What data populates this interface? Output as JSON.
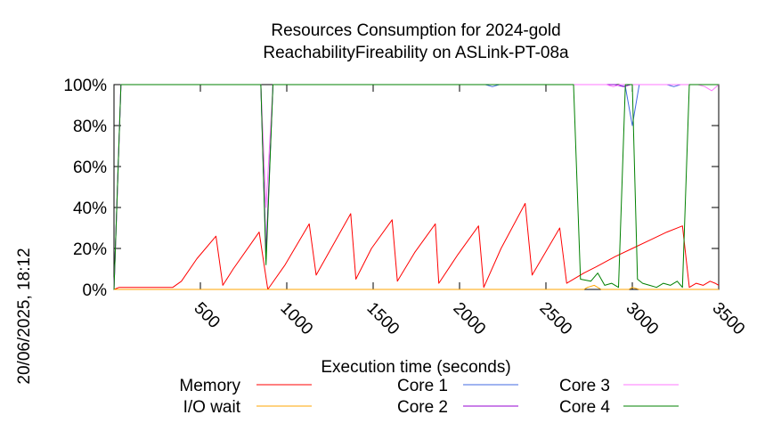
{
  "chart_data": {
    "type": "line",
    "title": "Resources Consumption for 2024-gold",
    "subtitle": "ReachabilityFireability on ASLink-PT-08a",
    "xlabel": "Execution time (seconds)",
    "ylabel": "",
    "side_label": "20/06/2025, 18:12",
    "xlim": [
      0,
      3500
    ],
    "ylim": [
      0,
      100
    ],
    "xticks": [
      "500",
      "1000",
      "1500",
      "2000",
      "2500",
      "3000",
      "3500"
    ],
    "xtick_values": [
      500,
      1000,
      1500,
      2000,
      2500,
      3000,
      3500
    ],
    "yticks": [
      "0%",
      "20%",
      "40%",
      "60%",
      "80%",
      "100%"
    ],
    "ytick_values": [
      0,
      20,
      40,
      60,
      80,
      100
    ],
    "grid": false,
    "legend_position": "bottom",
    "series": [
      {
        "name": "Memory",
        "color": "#ff0000",
        "x": [
          0,
          30,
          100,
          200,
          300,
          340,
          390,
          480,
          590,
          630,
          690,
          790,
          840,
          890,
          990,
          1130,
          1170,
          1270,
          1370,
          1400,
          1490,
          1610,
          1640,
          1740,
          1860,
          1880,
          1990,
          2110,
          2140,
          2240,
          2380,
          2420,
          2580,
          2620,
          2720,
          2790,
          2900,
          3000,
          3100,
          3200,
          3290,
          3330,
          3370,
          3410,
          3450,
          3480,
          3500
        ],
        "y": [
          0,
          1,
          1,
          1,
          1,
          1,
          4,
          15,
          26,
          2,
          10,
          22,
          28,
          0,
          12,
          32,
          7,
          22,
          37,
          5,
          20,
          34,
          4,
          18,
          32,
          3,
          17,
          31,
          1,
          20,
          42,
          7,
          30,
          3,
          8,
          11,
          16,
          20,
          24,
          28,
          31,
          1,
          3,
          2,
          4,
          3,
          2
        ]
      },
      {
        "name": "I/O wait",
        "color": "#ffa500",
        "x": [
          0,
          2700,
          2720,
          2740,
          2780,
          2820,
          2860,
          2900,
          2940,
          2980,
          3000,
          3040,
          3080,
          3120,
          3160,
          3200,
          3500
        ],
        "y": [
          0,
          0,
          0,
          1,
          2,
          0,
          0,
          0,
          0,
          0,
          1,
          0,
          0,
          0,
          0,
          0,
          0
        ]
      },
      {
        "name": "Core 1",
        "color": "#4169e1",
        "x": [
          0,
          40,
          850,
          880,
          920,
          2150,
          2190,
          2230,
          2700,
          2900,
          2960,
          3000,
          3040,
          3200,
          3240,
          3280,
          3500
        ],
        "y": [
          0,
          100,
          100,
          15,
          100,
          100,
          99,
          100,
          100,
          100,
          99,
          80,
          100,
          100,
          99,
          100,
          100
        ]
      },
      {
        "name": "Core 2",
        "color": "#9400d3",
        "x": [
          0,
          40,
          850,
          880,
          920,
          2700,
          2900,
          2950,
          2990,
          3040,
          3500
        ],
        "y": [
          0,
          100,
          100,
          18,
          100,
          100,
          100,
          99,
          100,
          100,
          100
        ]
      },
      {
        "name": "Core 3",
        "color": "#ff77ff",
        "x": [
          0,
          40,
          850,
          880,
          920,
          2700,
          2850,
          2890,
          2930,
          3380,
          3420,
          3460,
          3500
        ],
        "y": [
          0,
          100,
          100,
          40,
          100,
          100,
          100,
          99,
          100,
          100,
          99,
          97,
          100
        ]
      },
      {
        "name": "Core 4",
        "color": "#008000",
        "x": [
          0,
          40,
          850,
          880,
          920,
          2660,
          2700,
          2760,
          2800,
          2840,
          2880,
          2920,
          2960,
          3000,
          3030,
          3060,
          3100,
          3140,
          3180,
          3220,
          3260,
          3290,
          3330,
          3360,
          3400,
          3500
        ],
        "y": [
          0,
          100,
          100,
          12,
          100,
          100,
          5,
          4,
          8,
          2,
          3,
          1,
          100,
          100,
          5,
          3,
          2,
          1,
          3,
          2,
          4,
          1,
          100,
          100,
          100,
          100
        ]
      }
    ]
  }
}
